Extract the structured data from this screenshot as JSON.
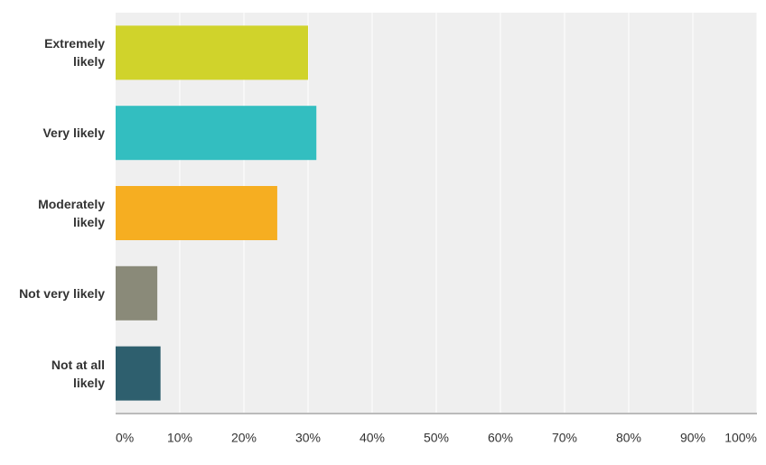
{
  "chart_data": {
    "type": "hbar",
    "categories": [
      "Extremely\nlikely",
      "Very likely",
      "Moderately\nlikely",
      "Not very likely",
      "Not at all\nlikely"
    ],
    "values": [
      30,
      31.3,
      25.2,
      6.5,
      7
    ],
    "colors": [
      "#d0d32b",
      "#33bec0",
      "#f6ae21",
      "#8a8a79",
      "#2e5f6e"
    ],
    "xlim": [
      0,
      100
    ],
    "xticks": [
      {
        "value": 0,
        "label": "0%"
      },
      {
        "value": 10,
        "label": "10%"
      },
      {
        "value": 20,
        "label": "20%"
      },
      {
        "value": 30,
        "label": "30%"
      },
      {
        "value": 40,
        "label": "40%"
      },
      {
        "value": 50,
        "label": "50%"
      },
      {
        "value": 60,
        "label": "60%"
      },
      {
        "value": 70,
        "label": "70%"
      },
      {
        "value": 80,
        "label": "80%"
      },
      {
        "value": 90,
        "label": "90%"
      },
      {
        "value": 100,
        "label": "100%"
      }
    ],
    "grid": true
  }
}
